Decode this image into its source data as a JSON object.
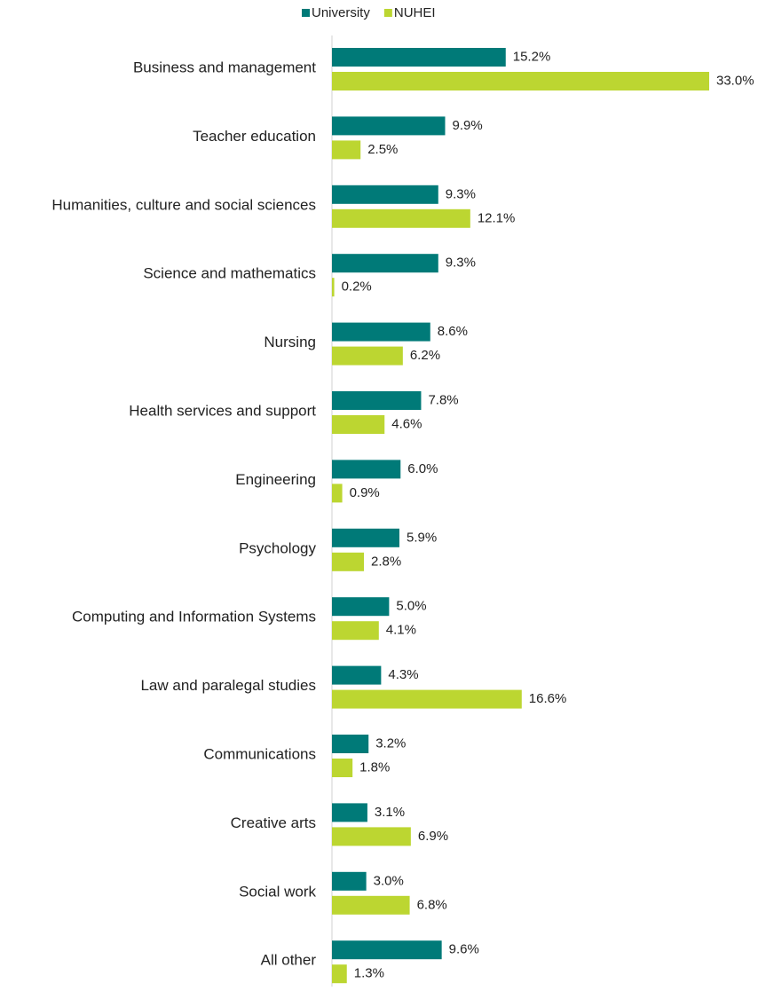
{
  "chart_data": {
    "type": "hbar",
    "categories": [
      "Business and management",
      "Teacher education",
      "Humanities, culture and social sciences",
      "Science and mathematics",
      "Nursing",
      "Health services and support",
      "Engineering",
      "Psychology",
      "Computing and Information Systems",
      "Law and paralegal studies",
      "Communications",
      "Creative arts",
      "Social work",
      "All other"
    ],
    "series": [
      {
        "name": "University",
        "color": "#007a78",
        "values": [
          15.2,
          9.9,
          9.3,
          9.3,
          8.6,
          7.8,
          6.0,
          5.9,
          5.0,
          4.3,
          3.2,
          3.1,
          3.0,
          9.6
        ],
        "value_labels": [
          "15.2%",
          "9.9%",
          "9.3%",
          "9.3%",
          "8.6%",
          "7.8%",
          "6.0%",
          "5.9%",
          "5.0%",
          "4.3%",
          "3.2%",
          "3.1%",
          "3.0%",
          "9.6%"
        ]
      },
      {
        "name": "NUHEI",
        "color": "#bcd631",
        "values": [
          33.0,
          2.5,
          12.1,
          0.2,
          6.2,
          4.6,
          0.9,
          2.8,
          4.1,
          16.6,
          1.8,
          6.9,
          6.8,
          1.3
        ],
        "value_labels": [
          "33.0%",
          "2.5%",
          "12.1%",
          "0.2%",
          "6.2%",
          "4.6%",
          "0.9%",
          "2.8%",
          "4.1%",
          "16.6%",
          "1.8%",
          "6.9%",
          "6.8%",
          "1.3%"
        ]
      }
    ],
    "legend": "top"
  }
}
